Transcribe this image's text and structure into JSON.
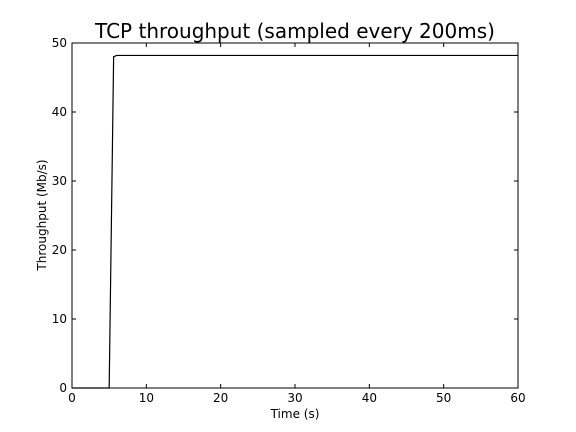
{
  "chart_data": {
    "type": "line",
    "title": "TCP throughput (sampled every 200ms)",
    "xlabel": "Time (s)",
    "ylabel": "Throughput (Mb/s)",
    "xlim": [
      0,
      60
    ],
    "ylim": [
      0,
      50
    ],
    "xticks": [
      0,
      10,
      20,
      30,
      40,
      50,
      60
    ],
    "yticks": [
      0,
      10,
      20,
      30,
      40,
      50
    ],
    "xtick_labels": [
      "0",
      "10",
      "20",
      "30",
      "40",
      "50",
      "60"
    ],
    "ytick_labels": [
      "0",
      "10",
      "20",
      "30",
      "40",
      "50"
    ],
    "grid": false,
    "series": [
      {
        "color": "#000000",
        "x": [
          0,
          5.0,
          5.6,
          6.0,
          10,
          20,
          30,
          40,
          50,
          60
        ],
        "y": [
          0,
          0,
          48.0,
          48.2,
          48.2,
          48.2,
          48.2,
          48.2,
          48.2,
          48.2
        ]
      }
    ]
  }
}
